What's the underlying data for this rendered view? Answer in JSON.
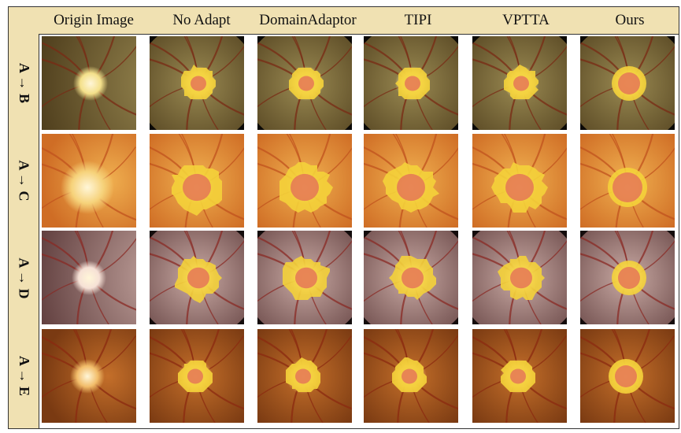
{
  "columns": [
    "Origin Image",
    "No Adapt",
    "DomainAdaptor",
    "TIPI",
    "VPTTA",
    "Ours"
  ],
  "rows": [
    {
      "label": "A → B",
      "palette": "B"
    },
    {
      "label": "A → C",
      "palette": "C"
    },
    {
      "label": "A → D",
      "palette": "D"
    },
    {
      "label": "A → E",
      "palette": "E"
    }
  ],
  "palettes": {
    "B": {
      "bg": "#0b0906",
      "fundus_in": "#9a8a52",
      "fundus_out": "#4b3a1a",
      "disc": "#f4e08a",
      "vessel": "#7a2a14",
      "corner": "#0b0906"
    },
    "C": {
      "bg": "#d98a3a",
      "fundus_in": "#f0b050",
      "fundus_out": "#cf6d25",
      "disc": "#f6d27a",
      "vessel": "#c0521e",
      "corner": "#d98a3a"
    },
    "D": {
      "bg": "#140c0c",
      "fundus_in": "#c9aaa4",
      "fundus_out": "#5c3a3a",
      "disc": "#f6e1d6",
      "vessel": "#8a2a24",
      "corner": "#140c0c"
    },
    "E": {
      "bg": "#6b3410",
      "fundus_in": "#c46f2a",
      "fundus_out": "#7a3a12",
      "disc": "#f2bd6a",
      "vessel": "#8b2a10",
      "corner": "#6b3410"
    }
  },
  "colors": {
    "header_bg": "#f0e1b2",
    "overlay_yellow": "#f4d23a",
    "overlay_cup": "#e36b59"
  }
}
